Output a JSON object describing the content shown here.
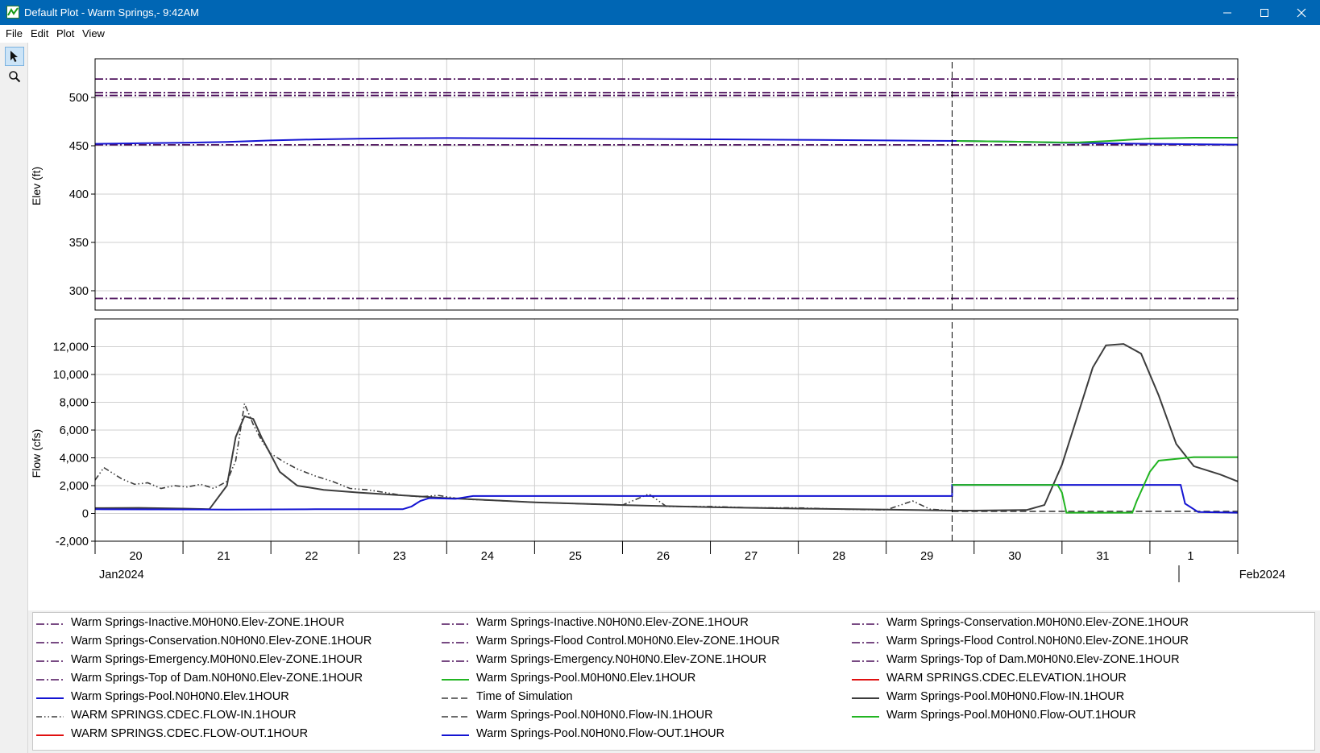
{
  "window": {
    "title": "Default Plot - Warm Springs,- 9:42AM",
    "controls": [
      "minimize",
      "maximize",
      "close"
    ]
  },
  "menu": [
    "File",
    "Edit",
    "Plot",
    "View"
  ],
  "tools": [
    {
      "icon": "pointer-arrow-icon",
      "active": true
    },
    {
      "icon": "zoom-magnifier-icon",
      "active": false
    }
  ],
  "colors": {
    "purple": "#4b0f5a",
    "blue": "#1414d2",
    "green": "#22b522",
    "gray": "#3c3c3c",
    "red": "#e01010",
    "titlebar": "#0066b4"
  },
  "chart_data": [
    {
      "type": "line",
      "ylabel": "Elev (ft)",
      "ylim": [
        280,
        540
      ],
      "yticks": [
        "300",
        "350",
        "400",
        "450",
        "500"
      ],
      "grid": true,
      "series": [
        {
          "name": "Warm Springs-Inactive.M0H0N0.Elev-ZONE.1HOUR",
          "style": "dash-dot",
          "color": "#4b0f5a",
          "x": [
            20,
            33
          ],
          "y": [
            292,
            292
          ]
        },
        {
          "name": "Warm Springs-Inactive.N0H0N0.Elev-ZONE.1HOUR",
          "style": "dash-dot",
          "color": "#4b0f5a",
          "x": [
            20,
            33
          ],
          "y": [
            292,
            292
          ]
        },
        {
          "name": "Warm Springs-Conservation.M0H0N0.Elev-ZONE.1HOUR",
          "style": "dash-dot",
          "color": "#4b0f5a",
          "x": [
            20,
            33
          ],
          "y": [
            451,
            451
          ]
        },
        {
          "name": "Warm Springs-Conservation.N0H0N0.Elev-ZONE.1HOUR",
          "style": "dash-dot",
          "color": "#4b0f5a",
          "x": [
            20,
            33
          ],
          "y": [
            451,
            451
          ]
        },
        {
          "name": "Warm Springs-Flood Control.M0H0N0.Elev-ZONE.1HOUR",
          "style": "dash-dot",
          "color": "#4b0f5a",
          "x": [
            20,
            33
          ],
          "y": [
            502,
            502
          ]
        },
        {
          "name": "Warm Springs-Flood Control.N0H0N0.Elev-ZONE.1HOUR",
          "style": "dash-dot",
          "color": "#4b0f5a",
          "x": [
            20,
            33
          ],
          "y": [
            502,
            502
          ]
        },
        {
          "name": "Warm Springs-Emergency.M0H0N0.Elev-ZONE.1HOUR",
          "style": "dash-dot",
          "color": "#4b0f5a",
          "x": [
            20,
            33
          ],
          "y": [
            505,
            505
          ]
        },
        {
          "name": "Warm Springs-Emergency.N0H0N0.Elev-ZONE.1HOUR",
          "style": "dash-dot",
          "color": "#4b0f5a",
          "x": [
            20,
            33
          ],
          "y": [
            505,
            505
          ]
        },
        {
          "name": "Warm Springs-Top of Dam.M0H0N0.Elev-ZONE.1HOUR",
          "style": "dash-dot",
          "color": "#4b0f5a",
          "x": [
            20,
            33
          ],
          "y": [
            519,
            519
          ]
        },
        {
          "name": "Warm Springs-Top of Dam.N0H0N0.Elev-ZONE.1HOUR",
          "style": "dash-dot",
          "color": "#4b0f5a",
          "x": [
            20,
            33
          ],
          "y": [
            519,
            519
          ]
        },
        {
          "name": "Warm Springs-Pool.N0H0N0.Elev.1HOUR",
          "style": "solid",
          "color": "#1414d2",
          "x": [
            20,
            20.5,
            21,
            21.5,
            22,
            22.5,
            23,
            23.5,
            24,
            25,
            26,
            27,
            28,
            29,
            29.8,
            30.5,
            31,
            32,
            33
          ],
          "y": [
            452,
            452.6,
            453.2,
            454,
            455.5,
            456.6,
            457.3,
            457.8,
            458,
            457.6,
            457.2,
            456.7,
            456.2,
            455.5,
            455,
            454.2,
            453.2,
            452,
            451.2
          ]
        },
        {
          "name": "Warm Springs-Pool.M0H0N0.Elev.1HOUR",
          "style": "solid",
          "color": "#22b522",
          "x": [
            29.8,
            30.5,
            31,
            31.2,
            31.5,
            31.8,
            32,
            32.5,
            33
          ],
          "y": [
            455,
            454.2,
            453.4,
            453.6,
            454.8,
            456.4,
            457.5,
            458.3,
            458.3
          ]
        },
        {
          "name": "Time of Simulation",
          "style": "dashed",
          "color": "#000000",
          "x": [
            29.75,
            29.75
          ],
          "y": [
            280,
            540
          ]
        }
      ]
    },
    {
      "type": "line",
      "ylabel": "Flow (cfs)",
      "ylim": [
        -2000,
        14000
      ],
      "yticks": [
        "-2,000",
        "0",
        "2,000",
        "4,000",
        "6,000",
        "8,000",
        "10,000",
        "12,000"
      ],
      "grid": true,
      "series": [
        {
          "name": "WARM SPRINGS.CDEC.FLOW-IN.1HOUR",
          "style": "dash-dot-dot",
          "color": "#3c3c3c",
          "x": [
            20,
            20.1,
            20.2,
            20.3,
            20.45,
            20.6,
            20.75,
            20.9,
            21.05,
            21.2,
            21.35,
            21.5,
            21.6,
            21.7,
            21.8,
            21.9,
            22,
            22.15,
            22.3,
            22.5,
            22.7,
            22.9,
            23.1,
            23.3,
            23.5,
            23.7,
            23.9,
            24.1,
            24.3,
            24.5,
            25,
            25.5,
            26,
            26.3,
            26.5,
            27,
            27.5,
            28,
            28.5,
            29,
            29.3,
            29.5,
            29.75
          ],
          "y": [
            2400,
            3300,
            2900,
            2500,
            2100,
            2200,
            1800,
            2000,
            1900,
            2100,
            1800,
            2300,
            3800,
            7900,
            6400,
            5200,
            4300,
            3700,
            3200,
            2700,
            2300,
            1800,
            1700,
            1500,
            1300,
            1200,
            1300,
            1100,
            1000,
            950,
            800,
            700,
            600,
            1400,
            500,
            500,
            400,
            400,
            300,
            250,
            900,
            300,
            200
          ]
        },
        {
          "name": "Warm Springs-Pool.M0H0N0.Flow-IN.1HOUR",
          "style": "solid",
          "color": "#3c3c3c",
          "x": [
            20,
            20.5,
            21,
            21.3,
            21.5,
            21.6,
            21.7,
            21.8,
            21.9,
            22,
            22.1,
            22.3,
            22.6,
            23,
            23.5,
            24,
            25,
            26,
            27,
            28,
            29,
            29.75,
            30,
            30.6,
            30.8,
            31,
            31.2,
            31.35,
            31.5,
            31.7,
            31.9,
            32.1,
            32.3,
            32.5,
            32.8,
            33
          ],
          "y": [
            380,
            400,
            350,
            300,
            2000,
            5500,
            7000,
            6800,
            5400,
            4200,
            3000,
            2000,
            1700,
            1500,
            1300,
            1100,
            800,
            600,
            450,
            350,
            280,
            200,
            200,
            250,
            600,
            3500,
            7500,
            10500,
            12100,
            12200,
            11500,
            8500,
            5000,
            3400,
            2800,
            2300
          ]
        },
        {
          "name": "Warm Springs-Pool.N0H0N0.Flow-IN.1HOUR",
          "style": "dashed",
          "color": "#3c3c3c",
          "x": [
            29.75,
            33
          ],
          "y": [
            150,
            150
          ]
        },
        {
          "name": "Warm Springs-Pool.N0H0N0.Flow-OUT.1HOUR",
          "style": "solid",
          "color": "#1414d2",
          "x": [
            20,
            21.5,
            22.5,
            23.5,
            23.6,
            23.7,
            23.8,
            24.1,
            24.3,
            25,
            26,
            27,
            28,
            29,
            29.75,
            29.75,
            30,
            31,
            32,
            32.35,
            32.4,
            32.55,
            33
          ],
          "y": [
            300,
            280,
            300,
            300,
            500,
            900,
            1100,
            1050,
            1250,
            1250,
            1250,
            1250,
            1250,
            1250,
            1250,
            2050,
            2050,
            2050,
            2050,
            2050,
            700,
            100,
            50
          ]
        },
        {
          "name": "Warm Springs-Pool.M0H0N0.Flow-OUT.1HOUR",
          "style": "solid",
          "color": "#22b522",
          "x": [
            29.75,
            30.95,
            31.0,
            31.05,
            31.8,
            31.85,
            32.0,
            32.1,
            32.5,
            33
          ],
          "y": [
            2050,
            2050,
            1500,
            50,
            50,
            900,
            3000,
            3800,
            4050,
            4050
          ]
        },
        {
          "name": "Time of Simulation",
          "style": "dashed",
          "color": "#000000",
          "x": [
            29.75,
            29.75
          ],
          "y": [
            -2000,
            14000
          ]
        }
      ]
    }
  ],
  "xaxis": {
    "start_day": 20,
    "end_day": 33,
    "tick_labels": [
      "20",
      "21",
      "22",
      "23",
      "24",
      "25",
      "26",
      "27",
      "28",
      "29",
      "30",
      "31",
      "1"
    ],
    "month_labels": [
      "Jan2024",
      "Feb2024"
    ]
  },
  "legend": {
    "items": [
      {
        "label": "Warm Springs-Inactive.M0H0N0.Elev-ZONE.1HOUR",
        "color": "#4b0f5a",
        "style": "dash-dot"
      },
      {
        "label": "Warm Springs-Inactive.N0H0N0.Elev-ZONE.1HOUR",
        "color": "#4b0f5a",
        "style": "dash-dot"
      },
      {
        "label": "Warm Springs-Conservation.M0H0N0.Elev-ZONE.1HOUR",
        "color": "#4b0f5a",
        "style": "dash-dot"
      },
      {
        "label": "Warm Springs-Conservation.N0H0N0.Elev-ZONE.1HOUR",
        "color": "#4b0f5a",
        "style": "dash-dot"
      },
      {
        "label": "Warm Springs-Flood Control.M0H0N0.Elev-ZONE.1HOUR",
        "color": "#4b0f5a",
        "style": "dash-dot"
      },
      {
        "label": "Warm Springs-Flood Control.N0H0N0.Elev-ZONE.1HOUR",
        "color": "#4b0f5a",
        "style": "dash-dot"
      },
      {
        "label": "Warm Springs-Emergency.M0H0N0.Elev-ZONE.1HOUR",
        "color": "#4b0f5a",
        "style": "dash-dot"
      },
      {
        "label": "Warm Springs-Emergency.N0H0N0.Elev-ZONE.1HOUR",
        "color": "#4b0f5a",
        "style": "dash-dot"
      },
      {
        "label": "Warm Springs-Top of Dam.M0H0N0.Elev-ZONE.1HOUR",
        "color": "#4b0f5a",
        "style": "dash-dot"
      },
      {
        "label": "Warm Springs-Top of Dam.N0H0N0.Elev-ZONE.1HOUR",
        "color": "#4b0f5a",
        "style": "dash-dot"
      },
      {
        "label": "Warm Springs-Pool.M0H0N0.Elev.1HOUR",
        "color": "#22b522",
        "style": "solid"
      },
      {
        "label": "WARM SPRINGS.CDEC.ELEVATION.1HOUR",
        "color": "#e01010",
        "style": "solid"
      },
      {
        "label": "Warm Springs-Pool.N0H0N0.Elev.1HOUR",
        "color": "#1414d2",
        "style": "solid"
      },
      {
        "label": "Time of Simulation",
        "color": "#3c3c3c",
        "style": "dashed"
      },
      {
        "label": "Warm Springs-Pool.M0H0N0.Flow-IN.1HOUR",
        "color": "#3c3c3c",
        "style": "solid"
      },
      {
        "label": "WARM SPRINGS.CDEC.FLOW-IN.1HOUR",
        "color": "#3c3c3c",
        "style": "dash-dot-dot"
      },
      {
        "label": "Warm Springs-Pool.N0H0N0.Flow-IN.1HOUR",
        "color": "#3c3c3c",
        "style": "dashed"
      },
      {
        "label": "Warm Springs-Pool.M0H0N0.Flow-OUT.1HOUR",
        "color": "#22b522",
        "style": "solid"
      },
      {
        "label": "WARM SPRINGS.CDEC.FLOW-OUT.1HOUR",
        "color": "#e01010",
        "style": "solid"
      },
      {
        "label": "Warm Springs-Pool.N0H0N0.Flow-OUT.1HOUR",
        "color": "#1414d2",
        "style": "solid"
      }
    ]
  }
}
